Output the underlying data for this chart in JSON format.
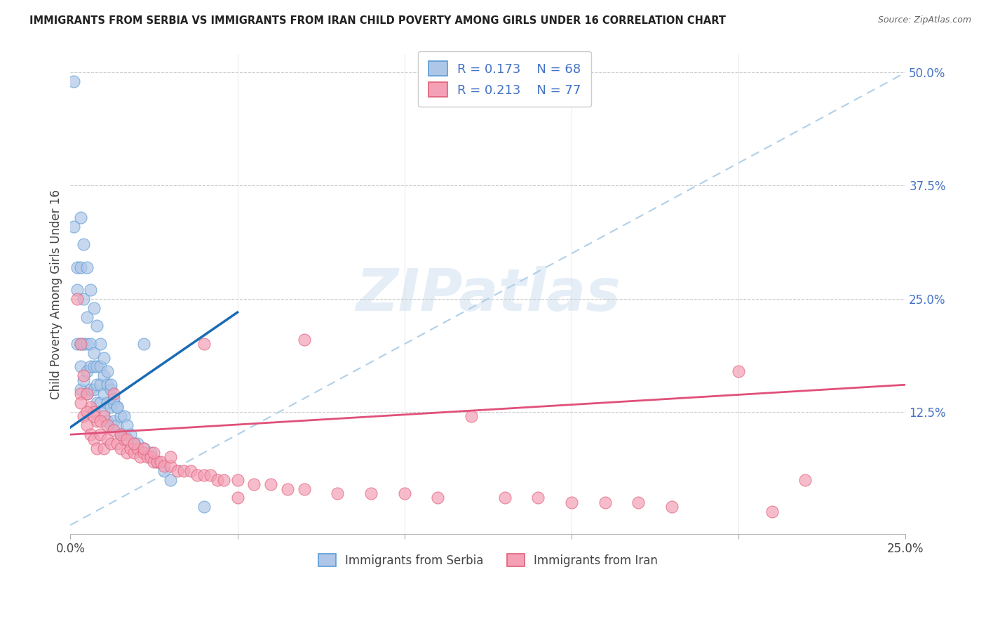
{
  "title": "IMMIGRANTS FROM SERBIA VS IMMIGRANTS FROM IRAN CHILD POVERTY AMONG GIRLS UNDER 16 CORRELATION CHART",
  "source": "Source: ZipAtlas.com",
  "ylabel": "Child Poverty Among Girls Under 16",
  "xlim": [
    0.0,
    0.25
  ],
  "ylim": [
    -0.01,
    0.52
  ],
  "yticks_right": [
    0.125,
    0.25,
    0.375,
    0.5
  ],
  "ytick_right_labels": [
    "12.5%",
    "25.0%",
    "37.5%",
    "50.0%"
  ],
  "serbia_fill": "#aec7e8",
  "serbia_edge": "#5b9bd5",
  "iran_fill": "#f4a0b5",
  "iran_edge": "#e0607a",
  "trend_serbia_color": "#1a6bb5",
  "trend_iran_color": "#e0507a",
  "diagonal_color": "#b0d0e8",
  "grid_color": "#cccccc",
  "bg_color": "#ffffff",
  "right_axis_color": "#4472c4",
  "watermark": "ZIPatlas",
  "serbia_R": "0.173",
  "serbia_N": "68",
  "iran_R": "0.213",
  "iran_N": "77",
  "serbia_x": [
    0.001,
    0.001,
    0.002,
    0.002,
    0.002,
    0.003,
    0.003,
    0.003,
    0.003,
    0.004,
    0.004,
    0.004,
    0.005,
    0.005,
    0.005,
    0.005,
    0.006,
    0.006,
    0.006,
    0.007,
    0.007,
    0.007,
    0.008,
    0.008,
    0.008,
    0.009,
    0.009,
    0.009,
    0.01,
    0.01,
    0.01,
    0.011,
    0.011,
    0.011,
    0.012,
    0.012,
    0.012,
    0.013,
    0.013,
    0.014,
    0.014,
    0.015,
    0.015,
    0.016,
    0.016,
    0.017,
    0.018,
    0.019,
    0.02,
    0.022,
    0.024,
    0.026,
    0.028,
    0.03,
    0.003,
    0.004,
    0.005,
    0.006,
    0.007,
    0.008,
    0.009,
    0.01,
    0.011,
    0.012,
    0.013,
    0.014,
    0.022,
    0.04
  ],
  "serbia_y": [
    0.49,
    0.33,
    0.285,
    0.26,
    0.2,
    0.285,
    0.2,
    0.175,
    0.15,
    0.25,
    0.2,
    0.16,
    0.23,
    0.2,
    0.17,
    0.145,
    0.2,
    0.175,
    0.15,
    0.19,
    0.175,
    0.15,
    0.175,
    0.155,
    0.135,
    0.175,
    0.155,
    0.135,
    0.165,
    0.145,
    0.125,
    0.155,
    0.135,
    0.115,
    0.15,
    0.13,
    0.11,
    0.135,
    0.115,
    0.13,
    0.11,
    0.12,
    0.1,
    0.12,
    0.1,
    0.11,
    0.1,
    0.09,
    0.09,
    0.085,
    0.08,
    0.07,
    0.06,
    0.05,
    0.34,
    0.31,
    0.285,
    0.26,
    0.24,
    0.22,
    0.2,
    0.185,
    0.17,
    0.155,
    0.14,
    0.13,
    0.2,
    0.02
  ],
  "iran_x": [
    0.002,
    0.003,
    0.003,
    0.004,
    0.004,
    0.005,
    0.005,
    0.006,
    0.006,
    0.007,
    0.007,
    0.008,
    0.008,
    0.009,
    0.01,
    0.01,
    0.011,
    0.012,
    0.013,
    0.014,
    0.015,
    0.016,
    0.017,
    0.018,
    0.019,
    0.02,
    0.021,
    0.022,
    0.023,
    0.024,
    0.025,
    0.026,
    0.027,
    0.028,
    0.03,
    0.032,
    0.034,
    0.036,
    0.038,
    0.04,
    0.042,
    0.044,
    0.046,
    0.05,
    0.055,
    0.06,
    0.065,
    0.07,
    0.08,
    0.09,
    0.1,
    0.11,
    0.12,
    0.13,
    0.14,
    0.15,
    0.16,
    0.17,
    0.18,
    0.2,
    0.21,
    0.22,
    0.003,
    0.005,
    0.007,
    0.009,
    0.011,
    0.013,
    0.015,
    0.017,
    0.019,
    0.022,
    0.025,
    0.03,
    0.04,
    0.05,
    0.07
  ],
  "iran_y": [
    0.25,
    0.2,
    0.145,
    0.165,
    0.12,
    0.145,
    0.11,
    0.13,
    0.1,
    0.125,
    0.095,
    0.115,
    0.085,
    0.1,
    0.12,
    0.085,
    0.095,
    0.09,
    0.145,
    0.09,
    0.085,
    0.095,
    0.08,
    0.085,
    0.08,
    0.085,
    0.075,
    0.08,
    0.075,
    0.075,
    0.07,
    0.07,
    0.07,
    0.065,
    0.065,
    0.06,
    0.06,
    0.06,
    0.055,
    0.055,
    0.055,
    0.05,
    0.05,
    0.05,
    0.045,
    0.045,
    0.04,
    0.04,
    0.035,
    0.035,
    0.035,
    0.03,
    0.12,
    0.03,
    0.03,
    0.025,
    0.025,
    0.025,
    0.02,
    0.17,
    0.015,
    0.05,
    0.135,
    0.125,
    0.12,
    0.115,
    0.11,
    0.105,
    0.1,
    0.095,
    0.09,
    0.085,
    0.08,
    0.075,
    0.2,
    0.03,
    0.205
  ]
}
